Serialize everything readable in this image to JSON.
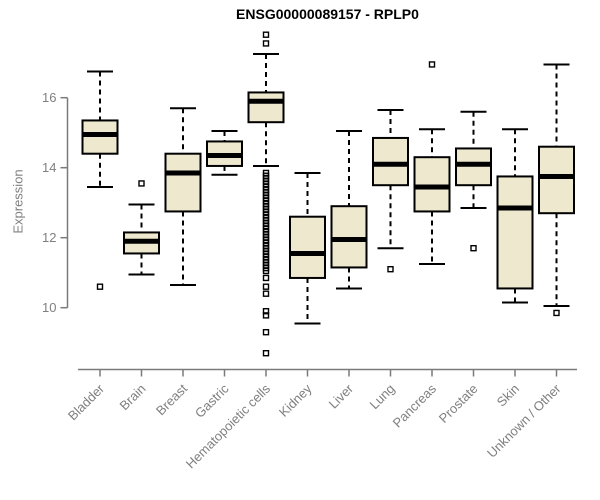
{
  "colors": {
    "box_fill": "#ede8ce",
    "box_border": "#000000",
    "median": "#000000",
    "whisker": "#000000",
    "axis": "#7a7a7a",
    "axis_text": "#7f7f7f",
    "title_text": "#000000",
    "background": "#ffffff"
  },
  "chart_data": {
    "type": "box",
    "title": "ENSG00000089157 - RPLP0",
    "xlabel": "",
    "ylabel": "Expression",
    "yticks": [
      10,
      12,
      14,
      16
    ],
    "ylim": [
      8.5,
      18.0
    ],
    "grid": false,
    "legend": false,
    "categories": [
      "Bladder",
      "Brain",
      "Breast",
      "Gastric",
      "Hematopoietic cells",
      "Kidney",
      "Liver",
      "Lung",
      "Pancreas",
      "Prostate",
      "Skin",
      "Unknown / Other"
    ],
    "series": [
      {
        "label": "Bladder",
        "whisker_low": 13.45,
        "q1": 14.4,
        "median": 14.95,
        "q3": 15.35,
        "whisker_high": 16.75,
        "outliers": [
          10.6
        ]
      },
      {
        "label": "Brain",
        "whisker_low": 10.95,
        "q1": 11.55,
        "median": 11.9,
        "q3": 12.15,
        "whisker_high": 12.95,
        "outliers": [
          13.55
        ]
      },
      {
        "label": "Breast",
        "whisker_low": 10.65,
        "q1": 12.75,
        "median": 13.85,
        "q3": 14.4,
        "whisker_high": 15.7,
        "outliers": []
      },
      {
        "label": "Gastric",
        "whisker_low": 13.8,
        "q1": 14.05,
        "median": 14.35,
        "q3": 14.75,
        "whisker_high": 15.05,
        "outliers": []
      },
      {
        "label": "Hematopoietic cells",
        "whisker_low": 14.05,
        "q1": 15.3,
        "median": 15.9,
        "q3": 16.15,
        "whisker_high": 17.25,
        "outliers": [
          17.8,
          17.55,
          13.85,
          13.77,
          13.69,
          13.61,
          13.53,
          13.45,
          13.37,
          13.29,
          13.21,
          13.13,
          13.05,
          12.97,
          12.89,
          12.81,
          12.73,
          12.65,
          12.57,
          12.49,
          12.41,
          12.33,
          12.25,
          12.17,
          12.09,
          12.01,
          11.93,
          11.85,
          11.77,
          11.69,
          11.61,
          11.53,
          11.45,
          11.37,
          11.29,
          11.21,
          11.13,
          11.05,
          10.85,
          10.6,
          10.4,
          9.9,
          9.78,
          9.3,
          8.7
        ]
      },
      {
        "label": "Kidney",
        "whisker_low": 9.55,
        "q1": 10.85,
        "median": 11.55,
        "q3": 12.6,
        "whisker_high": 13.85,
        "outliers": []
      },
      {
        "label": "Liver",
        "whisker_low": 10.55,
        "q1": 11.15,
        "median": 11.95,
        "q3": 12.9,
        "whisker_high": 15.05,
        "outliers": []
      },
      {
        "label": "Lung",
        "whisker_low": 11.7,
        "q1": 13.5,
        "median": 14.1,
        "q3": 14.85,
        "whisker_high": 15.65,
        "outliers": [
          11.1
        ]
      },
      {
        "label": "Pancreas",
        "whisker_low": 11.25,
        "q1": 12.75,
        "median": 13.45,
        "q3": 14.3,
        "whisker_high": 15.1,
        "outliers": [
          16.95
        ]
      },
      {
        "label": "Prostate",
        "whisker_low": 12.85,
        "q1": 13.5,
        "median": 14.1,
        "q3": 14.55,
        "whisker_high": 15.6,
        "outliers": [
          11.7
        ]
      },
      {
        "label": "Skin",
        "whisker_low": 10.15,
        "q1": 10.55,
        "median": 12.85,
        "q3": 13.75,
        "whisker_high": 15.1,
        "outliers": []
      },
      {
        "label": "Unknown / Other",
        "whisker_low": 10.05,
        "q1": 12.7,
        "median": 13.75,
        "q3": 14.6,
        "whisker_high": 16.95,
        "outliers": [
          9.85
        ]
      }
    ]
  }
}
